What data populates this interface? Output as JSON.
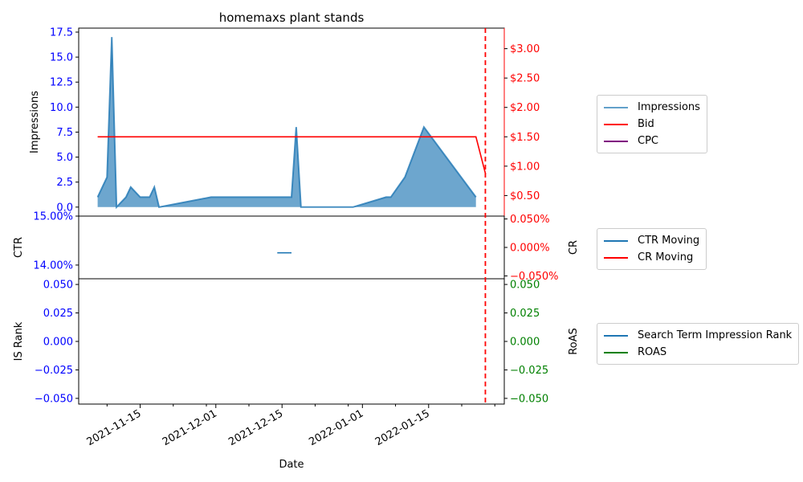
{
  "chart_data": {
    "type": "area",
    "title": "homemaxs plant stands",
    "xlabel": "Date",
    "x_ticks": [
      "2021-11-15",
      "2021-12-01",
      "2021-12-15",
      "2022-01-01",
      "2022-01-15"
    ],
    "marker_date": "2022-01-27",
    "panels": [
      {
        "name": "impressions-panel",
        "left_axis": {
          "label": "Impressions",
          "ylim": [
            -0.9,
            17.9
          ],
          "ticks": [
            "0.0",
            "2.5",
            "5.0",
            "7.5",
            "10.0",
            "12.5",
            "15.0",
            "17.5"
          ],
          "tick_values": [
            0,
            2.5,
            5,
            7.5,
            10,
            12.5,
            15,
            17.5
          ],
          "color": "#0000ff"
        },
        "right_axis": {
          "label": "",
          "ylim": [
            0.15,
            3.35
          ],
          "ticks": [
            "$0.50",
            "$1.00",
            "$1.50",
            "$2.00",
            "$2.50",
            "$3.00"
          ],
          "tick_values": [
            0.5,
            1.0,
            1.5,
            2.0,
            2.5,
            3.0
          ],
          "color": "#ff0000"
        },
        "series": [
          {
            "name": "Impressions",
            "kind": "area",
            "axis": "left",
            "color": "#1f77b4",
            "points": [
              [
                "2021-11-06",
                1
              ],
              [
                "2021-11-08",
                3
              ],
              [
                "2021-11-09",
                17
              ],
              [
                "2021-11-10",
                0
              ],
              [
                "2021-11-12",
                1
              ],
              [
                "2021-11-13",
                2
              ],
              [
                "2021-11-15",
                1
              ],
              [
                "2021-11-17",
                1
              ],
              [
                "2021-11-18",
                2
              ],
              [
                "2021-11-19",
                0
              ],
              [
                "2021-11-30",
                1
              ],
              [
                "2021-12-17",
                1
              ],
              [
                "2021-12-18",
                8
              ],
              [
                "2021-12-19",
                0
              ],
              [
                "2021-12-30",
                0
              ],
              [
                "2022-01-06",
                1
              ],
              [
                "2022-01-07",
                1
              ],
              [
                "2022-01-10",
                3
              ],
              [
                "2022-01-14",
                8
              ],
              [
                "2022-01-25",
                1
              ]
            ]
          },
          {
            "name": "Bid",
            "kind": "line",
            "axis": "right",
            "color": "#ff0000",
            "points": [
              [
                "2021-11-06",
                1.5
              ],
              [
                "2022-01-25",
                1.5
              ],
              [
                "2022-01-27",
                0.88
              ]
            ]
          },
          {
            "name": "CPC",
            "kind": "line",
            "axis": "right",
            "color": "#800080",
            "points": []
          }
        ],
        "legend": [
          "Impressions",
          "Bid",
          "CPC"
        ]
      },
      {
        "name": "ctr-panel",
        "left_axis": {
          "label": "CTR",
          "ylim": [
            13.72,
            15.0
          ],
          "ticks": [
            "14.00%",
            "15.00%"
          ],
          "tick_values": [
            14.0,
            15.0
          ],
          "color": "#0000ff"
        },
        "right_axis": {
          "label": "CR",
          "ylim": [
            -0.055,
            0.055
          ],
          "ticks": [
            "−0.050%",
            "0.000%",
            "0.050%"
          ],
          "tick_values": [
            -0.05,
            0.0,
            0.05
          ],
          "color": "#ff0000"
        },
        "series": [
          {
            "name": "CTR Moving",
            "kind": "line",
            "axis": "left",
            "color": "#1f77b4",
            "points": [
              [
                "2021-12-14",
                14.25
              ],
              [
                "2021-12-17",
                14.25
              ]
            ]
          },
          {
            "name": "CR Moving",
            "kind": "line",
            "axis": "right",
            "color": "#ff0000",
            "points": []
          }
        ],
        "legend": [
          "CTR Moving",
          "CR Moving"
        ]
      },
      {
        "name": "rank-panel",
        "left_axis": {
          "label": "IS Rank",
          "ylim": [
            -0.055,
            0.055
          ],
          "ticks": [
            "−0.050",
            "−0.025",
            "0.000",
            "0.025",
            "0.050"
          ],
          "tick_values": [
            -0.05,
            -0.025,
            0.0,
            0.025,
            0.05
          ],
          "color": "#0000ff"
        },
        "right_axis": {
          "label": "RoAS",
          "ylim": [
            -0.055,
            0.055
          ],
          "ticks": [
            "−0.050",
            "−0.025",
            "0.000",
            "0.025",
            "0.050"
          ],
          "tick_values": [
            -0.05,
            -0.025,
            0.0,
            0.025,
            0.05
          ],
          "color": "#008000"
        },
        "series": [
          {
            "name": "Search Term Impression Rank",
            "kind": "line",
            "axis": "left",
            "color": "#1f77b4",
            "points": []
          },
          {
            "name": "ROAS",
            "kind": "line",
            "axis": "right",
            "color": "#008000",
            "points": []
          }
        ],
        "legend": [
          "Search Term Impression Rank",
          "ROAS"
        ]
      }
    ]
  }
}
